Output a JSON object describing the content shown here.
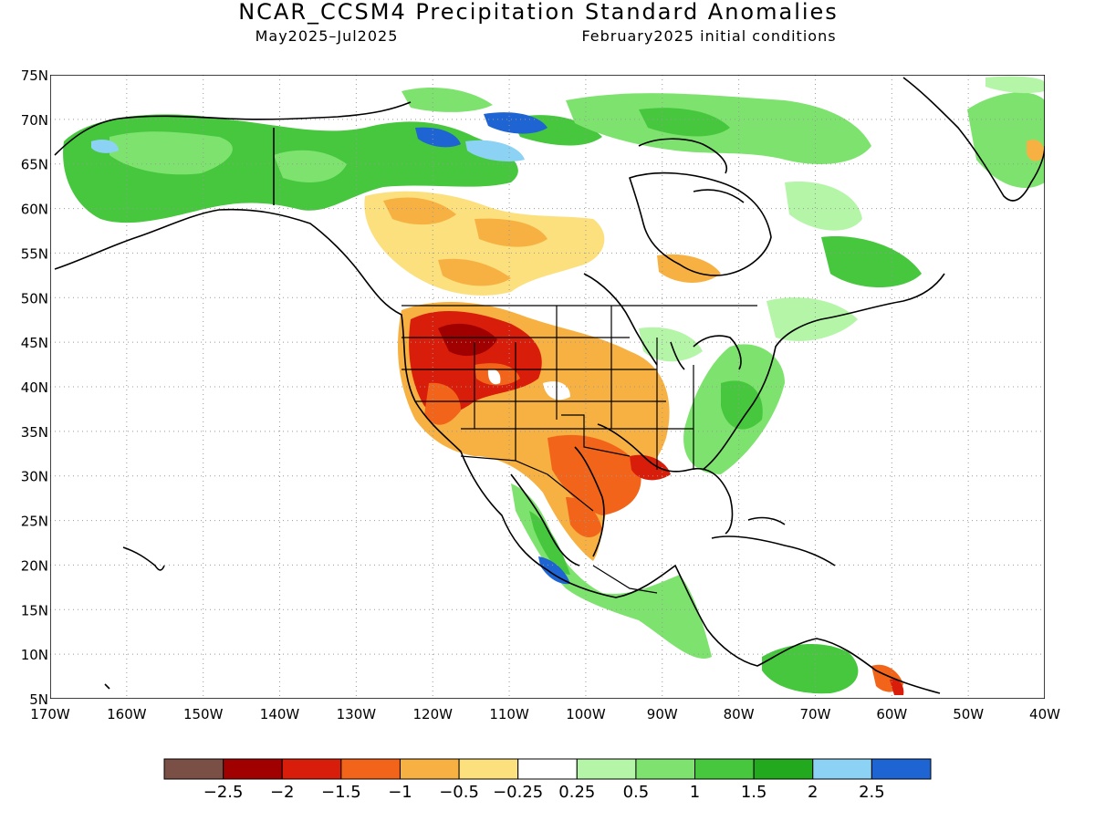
{
  "title": "NCAR_CCSM4 Precipitation Standard Anomalies",
  "period": "May2025–Jul2025",
  "init": "February2025 initial conditions",
  "map": {
    "lon_range": [
      -170,
      -40
    ],
    "lat_range": [
      5,
      75
    ],
    "lat_ticks": [
      "75N",
      "70N",
      "65N",
      "60N",
      "55N",
      "50N",
      "45N",
      "40N",
      "35N",
      "30N",
      "25N",
      "20N",
      "15N",
      "10N",
      "5N"
    ],
    "lon_ticks": [
      "170W",
      "160W",
      "150W",
      "140W",
      "130W",
      "120W",
      "110W",
      "100W",
      "90W",
      "80W",
      "70W",
      "60W",
      "50W",
      "40W"
    ],
    "grid": "dotted"
  },
  "colorbar": {
    "colors": [
      "#7a5046",
      "#a00000",
      "#d81e0a",
      "#f26419",
      "#f7b142",
      "#fbe07d",
      "#ffffff",
      "#b4f5a8",
      "#7ee36e",
      "#46c73e",
      "#22a91e",
      "#8cd2f5",
      "#1e64d2"
    ],
    "labels": [
      "−2.5",
      "−2",
      "−1.5",
      "−1",
      "−0.5",
      "−0.25",
      "0.25",
      "0.5",
      "1",
      "1.5",
      "2",
      "2.5"
    ]
  }
}
